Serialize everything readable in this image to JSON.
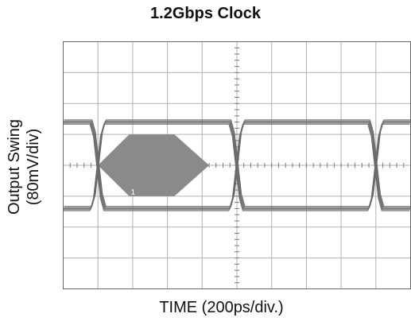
{
  "chart_data": {
    "type": "line",
    "title": "1.2Gbps Clock",
    "xlabel": "TIME (200ps/div.)",
    "ylabel_line1": "Output Swing",
    "ylabel_line2": "(80mV/div)",
    "grid": true,
    "xlim": [
      0,
      10
    ],
    "ylim": [
      -4,
      4
    ],
    "x_unit": "div",
    "y_unit": "div",
    "series": [
      {
        "x": [
          0,
          0.8,
          0.9,
          1.0,
          1.1,
          1.2,
          2.0
        ],
        "y": [
          1.4,
          1.4,
          1.0,
          0,
          -1.0,
          -1.4,
          -1.4
        ]
      },
      {
        "x": [
          0,
          0.8,
          0.9,
          1.0,
          1.1,
          1.2,
          2.0
        ],
        "y": [
          -1.4,
          -1.4,
          -1.0,
          0,
          1.0,
          1.4,
          1.4
        ]
      },
      {
        "x": [
          2.0,
          4.8,
          4.9,
          5.0,
          5.1,
          5.2,
          6.0
        ],
        "y": [
          1.4,
          1.4,
          1.0,
          0,
          -1.0,
          -1.4,
          -1.4
        ]
      },
      {
        "x": [
          2.0,
          4.8,
          4.9,
          5.0,
          5.1,
          5.2,
          6.0
        ],
        "y": [
          -1.4,
          -1.4,
          -1.0,
          0,
          1.0,
          1.4,
          1.4
        ]
      },
      {
        "x": [
          6.0,
          8.8,
          8.9,
          9.0,
          9.1,
          9.2,
          10.0
        ],
        "y": [
          1.4,
          1.4,
          1.0,
          0,
          -1.0,
          -1.4,
          -1.4
        ]
      },
      {
        "x": [
          6.0,
          8.8,
          8.9,
          9.0,
          9.1,
          9.2,
          10.0
        ],
        "y": [
          -1.4,
          -1.4,
          -1.0,
          0,
          1.0,
          1.4,
          1.4
        ]
      }
    ],
    "mask": {
      "label": "1",
      "x": [
        1.0,
        1.9,
        3.2,
        4.2,
        3.2,
        1.9
      ],
      "y": [
        0,
        1.0,
        1.0,
        0,
        -1.0,
        -1.0
      ],
      "color": "#8a8a8a"
    },
    "trace_color": "#6a6a6a",
    "grid_color": "#b0b0b0"
  }
}
